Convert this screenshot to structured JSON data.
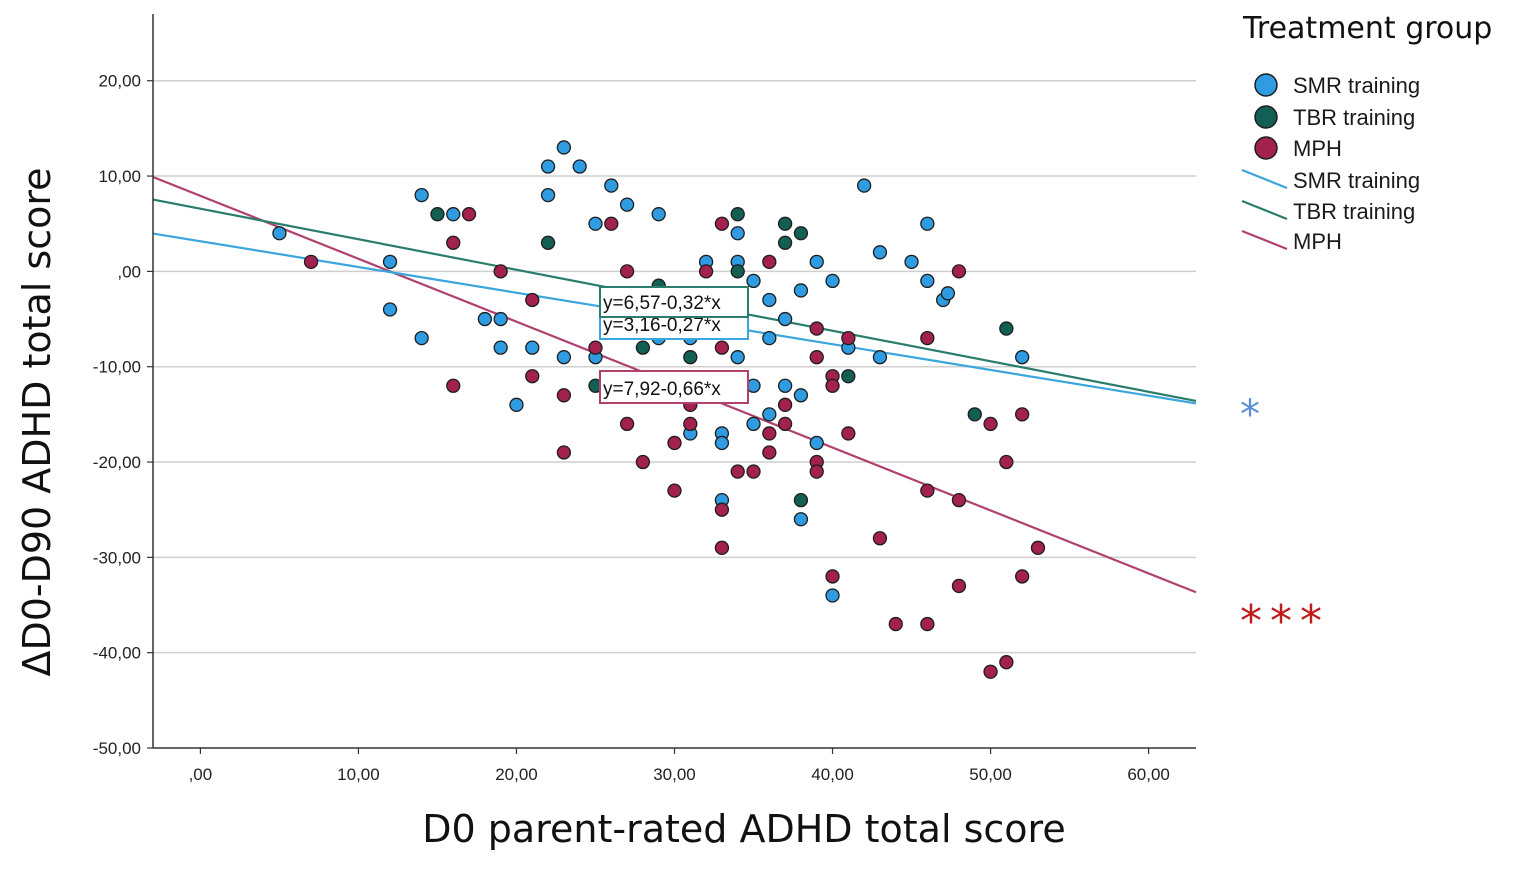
{
  "chart_data": {
    "type": "scatter",
    "title": "",
    "xlabel": "D0 parent-rated ADHD total score",
    "ylabel": "ΔD0-D90 ADHD total score",
    "xlim": [
      -3,
      63
    ],
    "ylim": [
      -50,
      27
    ],
    "x_ticks": [
      0,
      10,
      20,
      30,
      40,
      50,
      60
    ],
    "x_tick_labels": [
      ",00",
      "10,00",
      "20,00",
      "30,00",
      "40,00",
      "50,00",
      "60,00"
    ],
    "y_ticks": [
      20,
      10,
      0,
      -10,
      -20,
      -30,
      -40,
      -50
    ],
    "y_tick_labels": [
      "20,00",
      "10,00",
      ",00",
      "-10,00",
      "-20,00",
      "-30,00",
      "-40,00",
      "-50,00"
    ],
    "grid": "horizontal",
    "legend_title": "Treatment group",
    "legend_position": "right",
    "series": [
      {
        "name": "SMR training",
        "color": "#2f9be0",
        "fit_color": "#3aa6de",
        "fit_label": "SMR training",
        "fit": {
          "intercept": 3.16,
          "slope": -0.27
        },
        "fit_equation": "y=3,16-0,27*x",
        "significance": "*",
        "significance_color": "#5b8fd6",
        "points": [
          [
            5,
            4
          ],
          [
            12,
            1
          ],
          [
            12,
            -4
          ],
          [
            14,
            8
          ],
          [
            14,
            -7
          ],
          [
            16,
            6
          ],
          [
            18,
            -5
          ],
          [
            19,
            -5
          ],
          [
            19,
            -8
          ],
          [
            20,
            -14
          ],
          [
            21,
            -8
          ],
          [
            22,
            11
          ],
          [
            22,
            8
          ],
          [
            23,
            13
          ],
          [
            23,
            -9
          ],
          [
            24,
            11
          ],
          [
            25,
            5
          ],
          [
            25,
            -9
          ],
          [
            26,
            9
          ],
          [
            27,
            7
          ],
          [
            29,
            6
          ],
          [
            29,
            -7
          ],
          [
            31,
            -5
          ],
          [
            31,
            -7
          ],
          [
            31,
            -17
          ],
          [
            32,
            1
          ],
          [
            33,
            -17
          ],
          [
            33,
            -18
          ],
          [
            33,
            -24
          ],
          [
            34,
            4
          ],
          [
            34,
            1
          ],
          [
            34,
            -9
          ],
          [
            35,
            -1
          ],
          [
            35,
            -12
          ],
          [
            35,
            -16
          ],
          [
            36,
            -3
          ],
          [
            36,
            -7
          ],
          [
            36,
            -15
          ],
          [
            37,
            -5
          ],
          [
            37,
            -12
          ],
          [
            38,
            -2
          ],
          [
            38,
            -13
          ],
          [
            38,
            -26
          ],
          [
            39,
            1
          ],
          [
            39,
            -18
          ],
          [
            40,
            -1
          ],
          [
            40,
            -34
          ],
          [
            41,
            -8
          ],
          [
            42,
            9
          ],
          [
            43,
            2
          ],
          [
            43,
            -9
          ],
          [
            45,
            1
          ],
          [
            46,
            5
          ],
          [
            46,
            -1
          ],
          [
            47,
            -3
          ],
          [
            47.3,
            -2.3
          ],
          [
            52,
            -9
          ]
        ]
      },
      {
        "name": "TBR training",
        "color": "#145f54",
        "fit_color": "#2a7d6c",
        "fit_label": "TBR training",
        "fit": {
          "intercept": 6.57,
          "slope": -0.32
        },
        "fit_equation": "y=6,57-0,32*x",
        "significance": "",
        "points": [
          [
            15,
            6
          ],
          [
            22,
            3
          ],
          [
            25,
            -12
          ],
          [
            28,
            -8
          ],
          [
            29,
            -1.5
          ],
          [
            31,
            -9
          ],
          [
            34,
            6
          ],
          [
            34,
            0
          ],
          [
            37,
            5
          ],
          [
            37,
            3
          ],
          [
            38,
            4
          ],
          [
            38,
            -24
          ],
          [
            41,
            -11
          ],
          [
            49,
            -15
          ],
          [
            51,
            -6
          ]
        ]
      },
      {
        "name": "MPH",
        "color": "#a2214f",
        "fit_color": "#b0416e",
        "fit_label": "MPH",
        "fit": {
          "intercept": 7.92,
          "slope": -0.66
        },
        "fit_equation": "y=7,92-0,66*x",
        "significance": "***",
        "significance_color": "#c01a1a",
        "points": [
          [
            7,
            1
          ],
          [
            16,
            3
          ],
          [
            16,
            -12
          ],
          [
            17,
            6
          ],
          [
            19,
            0
          ],
          [
            21,
            -3
          ],
          [
            21,
            -11
          ],
          [
            23,
            -13
          ],
          [
            23,
            -19
          ],
          [
            25,
            -8
          ],
          [
            26,
            5
          ],
          [
            27,
            0
          ],
          [
            27,
            -16
          ],
          [
            28,
            -20
          ],
          [
            30,
            -18
          ],
          [
            30,
            -23
          ],
          [
            31,
            -14
          ],
          [
            31,
            -16
          ],
          [
            32,
            0
          ],
          [
            33,
            5
          ],
          [
            33,
            -8
          ],
          [
            33,
            -25
          ],
          [
            33,
            -29
          ],
          [
            34,
            -21
          ],
          [
            35,
            -21
          ],
          [
            36,
            1
          ],
          [
            36,
            -17
          ],
          [
            36,
            -19
          ],
          [
            37,
            -14
          ],
          [
            37,
            -16
          ],
          [
            39,
            -6
          ],
          [
            39,
            -9
          ],
          [
            39,
            -20
          ],
          [
            39,
            -21
          ],
          [
            40,
            -11
          ],
          [
            40,
            -12
          ],
          [
            40,
            -32
          ],
          [
            41,
            -7
          ],
          [
            41,
            -17
          ],
          [
            43,
            -28
          ],
          [
            44,
            -37
          ],
          [
            46,
            -7
          ],
          [
            46,
            -23
          ],
          [
            46,
            -37
          ],
          [
            48,
            0
          ],
          [
            48,
            -24
          ],
          [
            48,
            -33
          ],
          [
            50,
            -42
          ],
          [
            50,
            -16
          ],
          [
            51,
            -20
          ],
          [
            51,
            -41
          ],
          [
            52,
            -15
          ],
          [
            52,
            -32
          ],
          [
            53,
            -29
          ]
        ]
      }
    ]
  }
}
